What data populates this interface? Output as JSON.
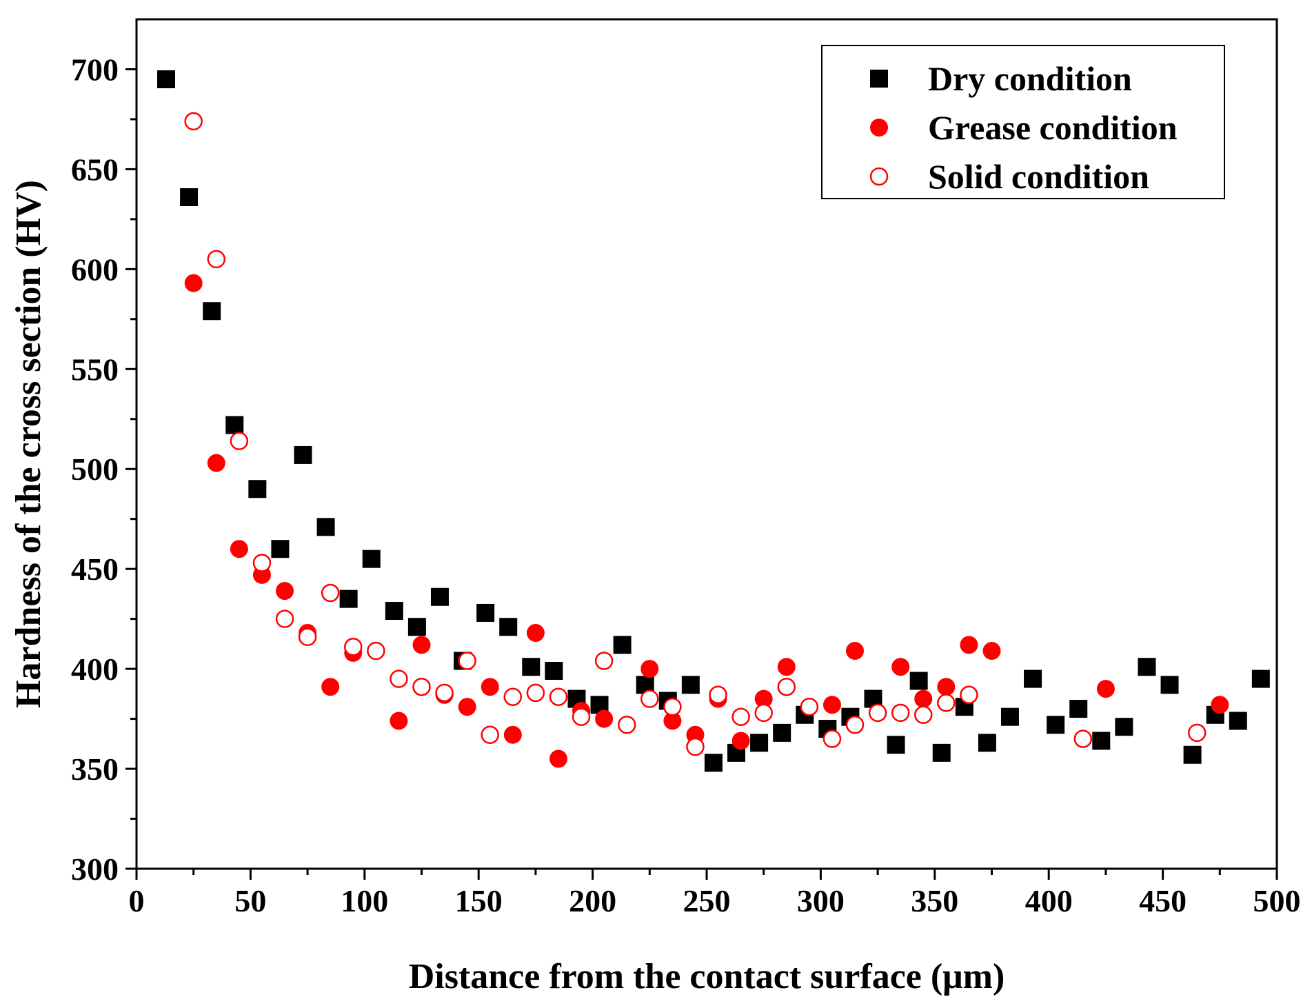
{
  "chart_data": {
    "type": "scatter",
    "xlabel": "Distance from the contact surface (μm)",
    "ylabel": "Hardness of the cross section (HV)",
    "xlim": [
      0,
      500
    ],
    "ylim": [
      300,
      725
    ],
    "xticks": [
      0,
      50,
      100,
      150,
      200,
      250,
      300,
      350,
      400,
      450,
      500
    ],
    "xtick_labels": [
      "0",
      "50",
      "100",
      "150",
      "200",
      "250",
      "300",
      "350",
      "400",
      "450",
      "500"
    ],
    "yticks": [
      300,
      350,
      400,
      450,
      500,
      550,
      600,
      650,
      700
    ],
    "ytick_labels": [
      "300",
      "350",
      "400",
      "450",
      "500",
      "550",
      "600",
      "650",
      "700"
    ],
    "grid": false,
    "legend_position": "top-right",
    "series": [
      {
        "name": "Dry condition",
        "marker": "filled-square",
        "color": "#000000",
        "x": [
          13,
          23,
          33,
          43,
          53,
          63,
          73,
          83,
          93,
          103,
          113,
          123,
          133,
          143,
          153,
          163,
          173,
          183,
          193,
          203,
          213,
          223,
          233,
          243,
          253,
          263,
          273,
          283,
          293,
          303,
          313,
          323,
          333,
          343,
          353,
          363,
          373,
          383,
          393,
          403,
          413,
          423,
          433,
          443,
          453,
          463,
          473,
          483,
          493
        ],
        "y": [
          695,
          636,
          579,
          522,
          490,
          460,
          507,
          471,
          435,
          455,
          429,
          421,
          436,
          404,
          428,
          421,
          401,
          399,
          385,
          382,
          412,
          392,
          384,
          392,
          353,
          358,
          363,
          368,
          377,
          370,
          376,
          385,
          362,
          394,
          358,
          381,
          363,
          376,
          395,
          372,
          380,
          364,
          371,
          401,
          392,
          357,
          377,
          374,
          395
        ]
      },
      {
        "name": "Grease condition",
        "marker": "filled-circle",
        "color": "#ff0000",
        "x": [
          25,
          35,
          45,
          55,
          65,
          75,
          85,
          95,
          115,
          125,
          135,
          145,
          155,
          165,
          175,
          185,
          195,
          205,
          225,
          235,
          245,
          255,
          265,
          275,
          285,
          305,
          315,
          335,
          345,
          355,
          365,
          375,
          425,
          475
        ],
        "y": [
          593,
          503,
          460,
          447,
          439,
          418,
          391,
          408,
          374,
          412,
          387,
          381,
          391,
          367,
          418,
          355,
          379,
          375,
          400,
          374,
          367,
          385,
          364,
          385,
          401,
          382,
          409,
          401,
          385,
          391,
          412,
          409,
          390,
          382
        ]
      },
      {
        "name": "Solid condition",
        "marker": "open-circle",
        "color": "#ff0000",
        "x": [
          25,
          35,
          45,
          55,
          65,
          75,
          95,
          85,
          105,
          115,
          125,
          135,
          145,
          155,
          165,
          175,
          185,
          195,
          205,
          215,
          225,
          235,
          245,
          255,
          265,
          275,
          285,
          295,
          305,
          315,
          325,
          335,
          345,
          355,
          365,
          415,
          465
        ],
        "y": [
          674,
          605,
          514,
          453,
          425,
          416,
          411,
          438,
          409,
          395,
          391,
          388,
          404,
          367,
          386,
          388,
          386,
          376,
          404,
          372,
          385,
          381,
          361,
          387,
          376,
          378,
          391,
          381,
          365,
          372,
          378,
          378,
          377,
          383,
          387,
          365,
          368
        ]
      }
    ]
  }
}
